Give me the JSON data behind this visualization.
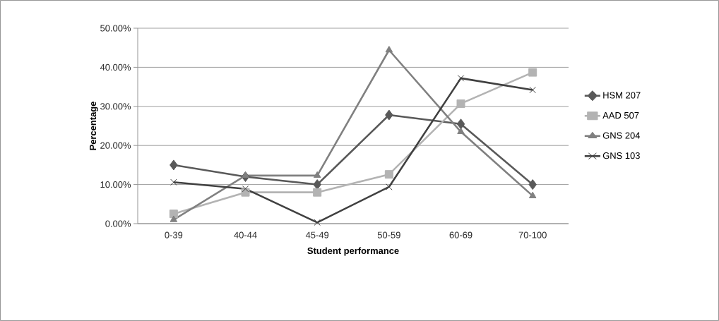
{
  "chart_data": {
    "type": "line",
    "xlabel": "Student performance",
    "ylabel": "Percentage",
    "categories": [
      "0-39",
      "40-44",
      "45-49",
      "50-59",
      "60-69",
      "70-100"
    ],
    "series": [
      {
        "name": "HSM 207",
        "color": "#595959",
        "marker": "diamond",
        "values": [
          15,
          12,
          10,
          27.8,
          25.5,
          10
        ]
      },
      {
        "name": "AAD 507",
        "color": "#b3b3b3",
        "marker": "square",
        "values": [
          2.5,
          8,
          8,
          12.6,
          30.7,
          38.7
        ]
      },
      {
        "name": "GNS 204",
        "color": "#808080",
        "marker": "triangle",
        "values": [
          1,
          12.3,
          12.3,
          44.4,
          23.5,
          7.1
        ]
      },
      {
        "name": "GNS 103",
        "color": "#404040",
        "marker": "cross",
        "values": [
          10.6,
          8.9,
          0.3,
          9.4,
          37.2,
          34.2
        ]
      }
    ],
    "ylim": [
      0,
      50
    ],
    "yticks": [
      {
        "value": 0,
        "label": "0.00%"
      },
      {
        "value": 10,
        "label": "10.00%"
      },
      {
        "value": 20,
        "label": "20.00%"
      },
      {
        "value": 30,
        "label": "30.00%"
      },
      {
        "value": 40,
        "label": "40.00%"
      },
      {
        "value": 50,
        "label": "50.00%"
      }
    ],
    "grid": "y",
    "legend": "right",
    "line_style": "solid"
  }
}
